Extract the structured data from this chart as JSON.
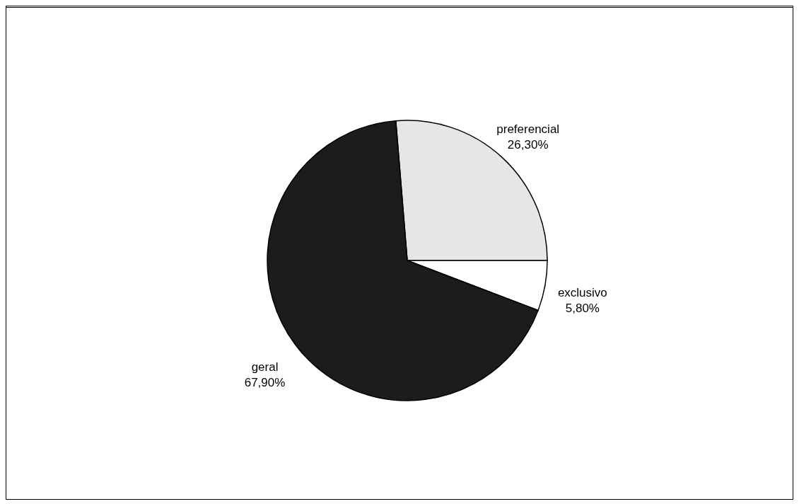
{
  "chart_data": {
    "type": "pie",
    "categories": [
      "preferencial",
      "exclusivo",
      "geral"
    ],
    "values": [
      26.3,
      5.8,
      67.9
    ],
    "value_labels": [
      "26,30%",
      "5,80%",
      "67,90%"
    ],
    "colors": [
      "#e6e6e6",
      "#ffffff",
      "#1c1c1c"
    ]
  }
}
